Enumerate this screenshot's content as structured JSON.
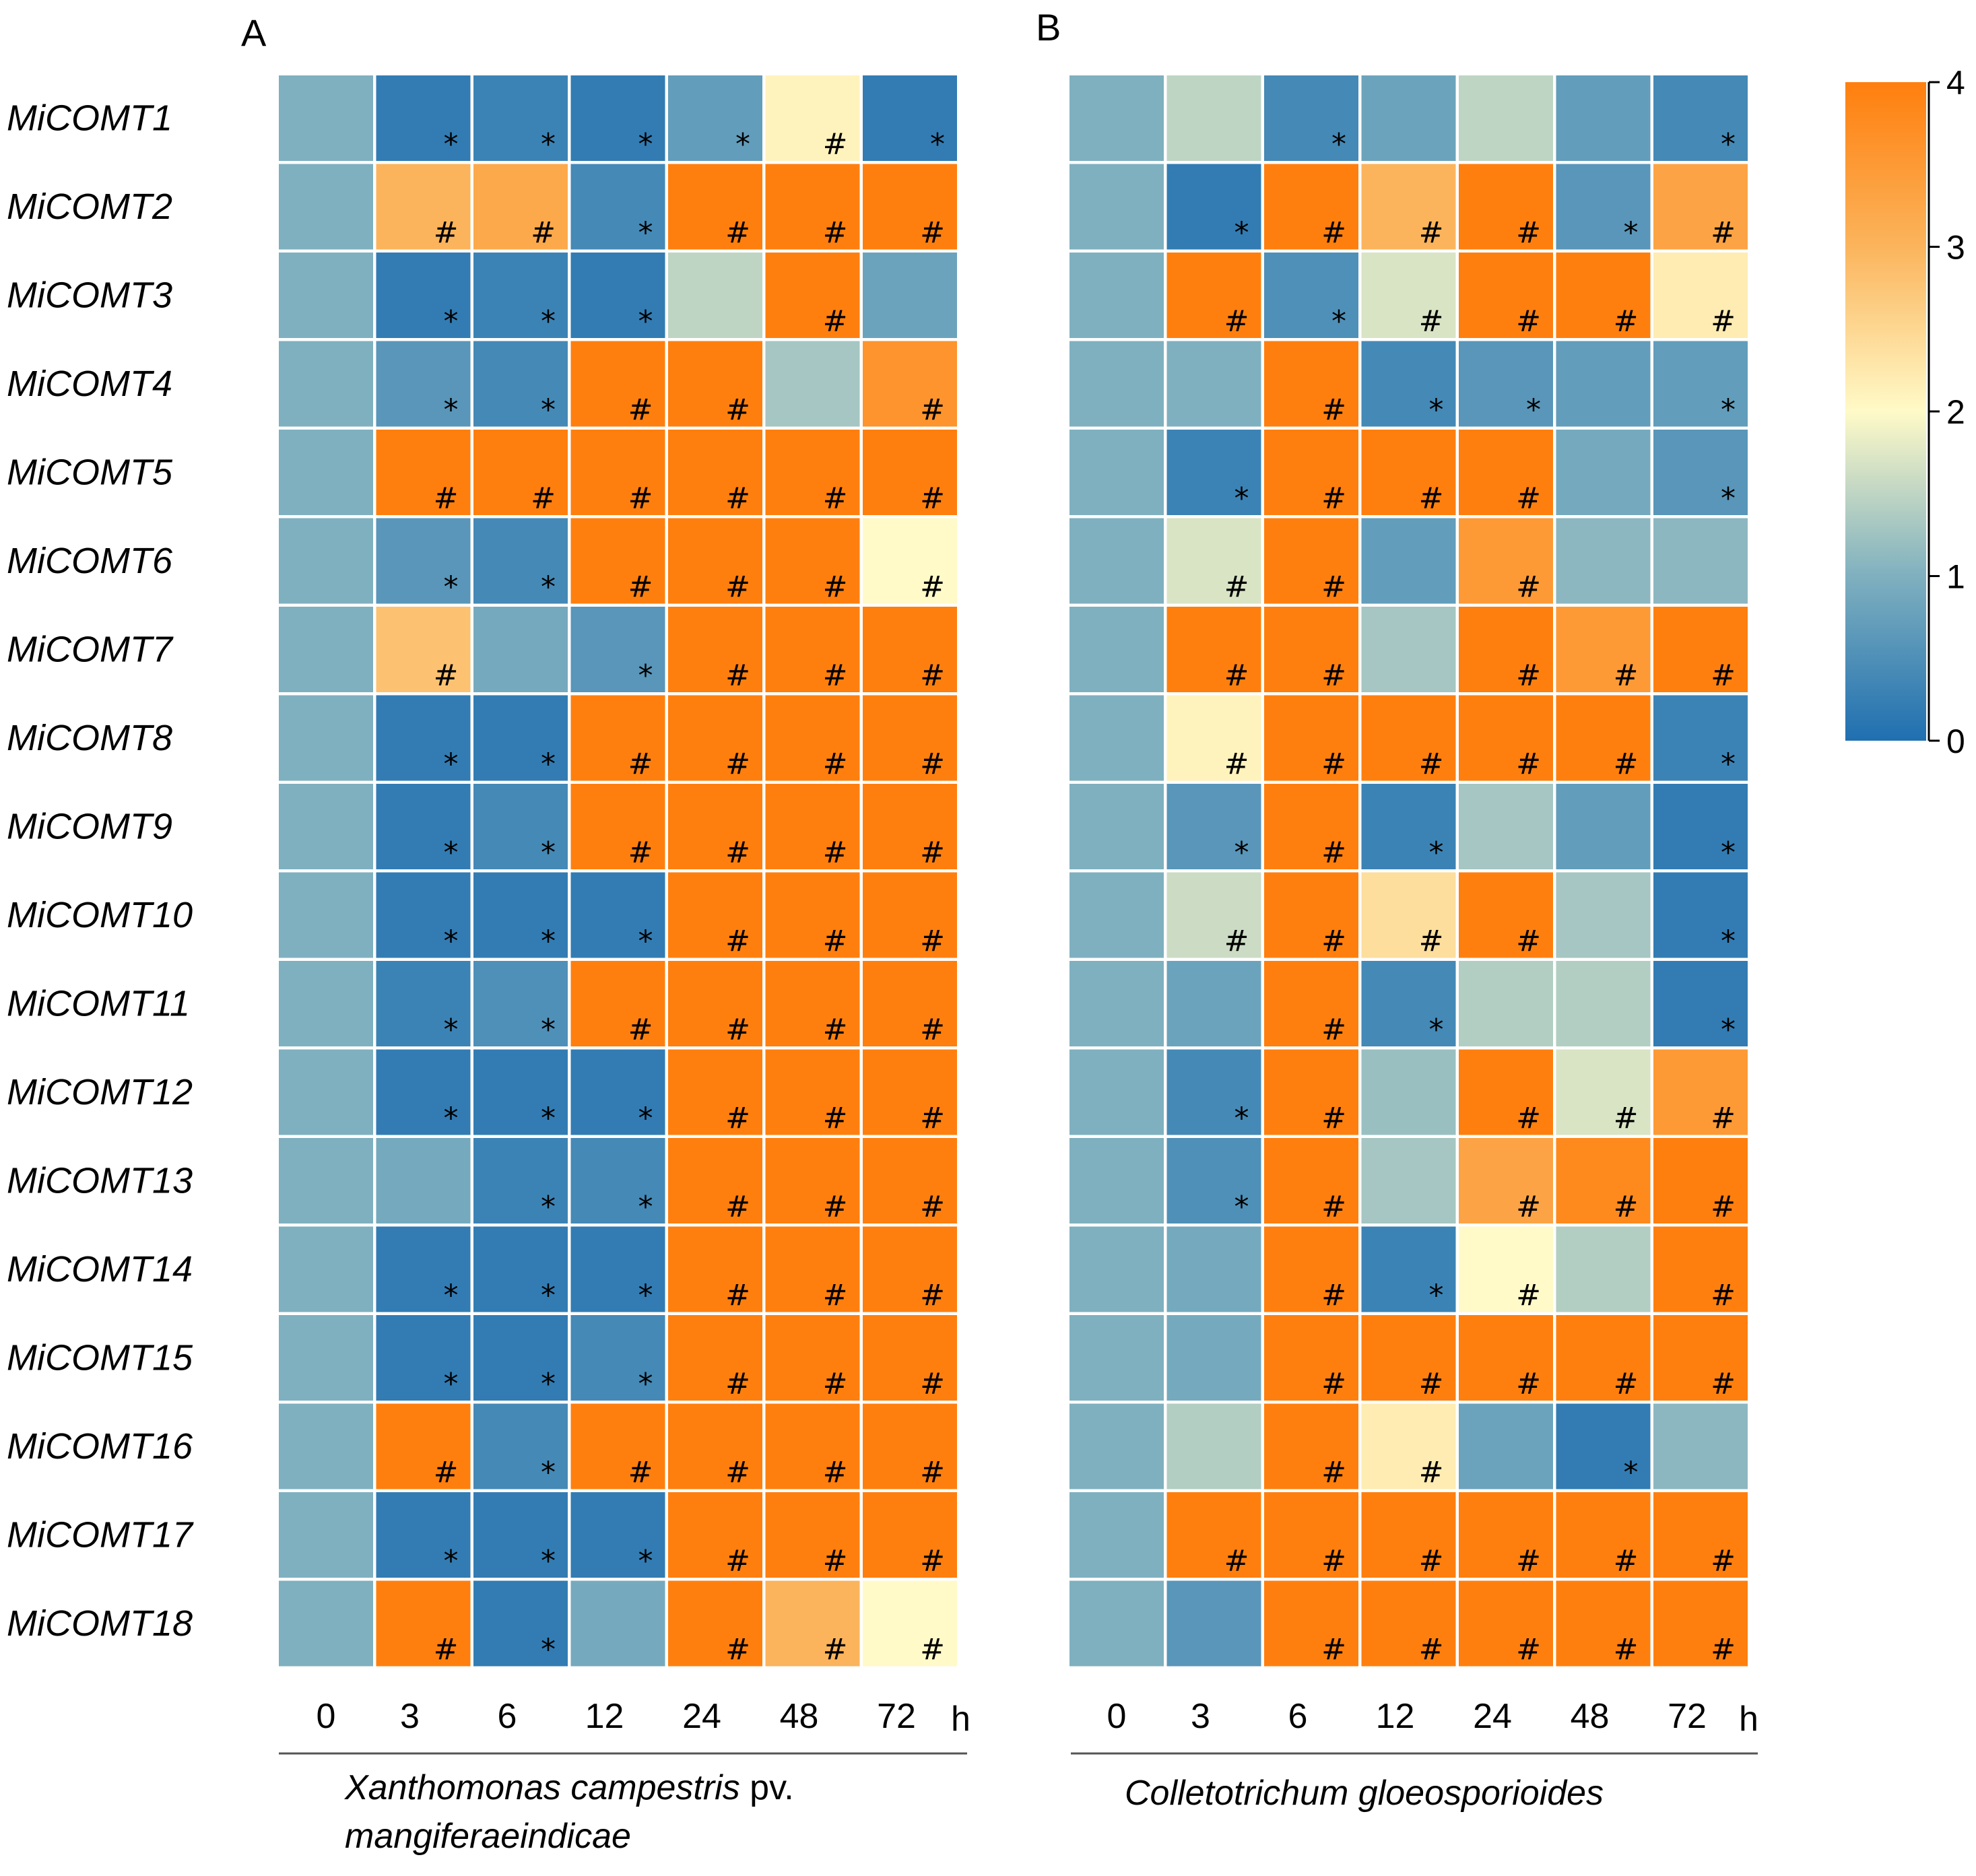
{
  "chart_data": [
    {
      "type": "heatmap",
      "panel": "A",
      "rows": [
        "MiCOMT1",
        "MiCOMT2",
        "MiCOMT3",
        "MiCOMT4",
        "MiCOMT5",
        "MiCOMT6",
        "MiCOMT7",
        "MiCOMT8",
        "MiCOMT9",
        "MiCOMT10",
        "MiCOMT11",
        "MiCOMT12",
        "MiCOMT13",
        "MiCOMT14",
        "MiCOMT15",
        "MiCOMT16",
        "MiCOMT17",
        "MiCOMT18"
      ],
      "columns": [
        "0",
        "3",
        "6",
        "12",
        "24",
        "48",
        "72"
      ],
      "x_unit": "h",
      "condition": [
        {
          "text": "Xanthomonas campestris",
          "italic": true
        },
        {
          "text": " pv.",
          "italic": false
        },
        {
          "text": "mangiferaeindicae",
          "italic": true
        }
      ],
      "values": [
        [
          1.0,
          0.2,
          0.3,
          0.2,
          0.7,
          2.1,
          0.2
        ],
        [
          1.0,
          3.0,
          3.2,
          0.4,
          4.0,
          4.0,
          4.0
        ],
        [
          1.0,
          0.2,
          0.3,
          0.2,
          1.5,
          4.0,
          0.8
        ],
        [
          1.0,
          0.6,
          0.4,
          4.0,
          4.0,
          1.3,
          3.6
        ],
        [
          1.0,
          4.0,
          4.0,
          4.0,
          4.0,
          4.0,
          4.0
        ],
        [
          1.0,
          0.6,
          0.4,
          4.0,
          4.0,
          4.0,
          2.0
        ],
        [
          1.0,
          2.8,
          0.9,
          0.6,
          4.0,
          4.0,
          4.0
        ],
        [
          1.0,
          0.2,
          0.2,
          4.0,
          4.0,
          4.0,
          4.0
        ],
        [
          1.0,
          0.2,
          0.4,
          4.0,
          4.0,
          4.0,
          4.0
        ],
        [
          1.0,
          0.2,
          0.2,
          0.2,
          4.0,
          4.0,
          4.0
        ],
        [
          1.0,
          0.3,
          0.5,
          4.0,
          4.0,
          4.0,
          4.0
        ],
        [
          1.0,
          0.2,
          0.2,
          0.2,
          4.0,
          4.0,
          4.0
        ],
        [
          1.0,
          0.9,
          0.3,
          0.4,
          4.0,
          4.0,
          4.0
        ],
        [
          1.0,
          0.2,
          0.2,
          0.2,
          4.0,
          4.0,
          4.0
        ],
        [
          1.0,
          0.2,
          0.2,
          0.4,
          4.0,
          4.0,
          4.0
        ],
        [
          1.0,
          4.0,
          0.4,
          4.0,
          4.0,
          4.0,
          4.0
        ],
        [
          1.0,
          0.2,
          0.2,
          0.2,
          4.0,
          4.0,
          4.0
        ],
        [
          1.0,
          4.0,
          0.2,
          0.9,
          4.0,
          3.0,
          2.0
        ]
      ],
      "marks": [
        [
          "",
          "*",
          "*",
          "*",
          "*",
          "#",
          "*"
        ],
        [
          "",
          "#",
          "#",
          "*",
          "#",
          "#",
          "#"
        ],
        [
          "",
          "*",
          "*",
          "*",
          "",
          "#",
          ""
        ],
        [
          "",
          "*",
          "*",
          "#",
          "#",
          "",
          "#"
        ],
        [
          "",
          "#",
          "#",
          "#",
          "#",
          "#",
          "#"
        ],
        [
          "",
          "*",
          "*",
          "#",
          "#",
          "#",
          "#"
        ],
        [
          "",
          "#",
          "",
          "*",
          "#",
          "#",
          "#"
        ],
        [
          "",
          "*",
          "*",
          "#",
          "#",
          "#",
          "#"
        ],
        [
          "",
          "*",
          "*",
          "#",
          "#",
          "#",
          "#"
        ],
        [
          "",
          "*",
          "*",
          "*",
          "#",
          "#",
          "#"
        ],
        [
          "",
          "*",
          "*",
          "#",
          "#",
          "#",
          "#"
        ],
        [
          "",
          "*",
          "*",
          "*",
          "#",
          "#",
          "#"
        ],
        [
          "",
          "",
          "*",
          "*",
          "#",
          "#",
          "#"
        ],
        [
          "",
          "*",
          "*",
          "*",
          "#",
          "#",
          "#"
        ],
        [
          "",
          "*",
          "*",
          "*",
          "#",
          "#",
          "#"
        ],
        [
          "",
          "#",
          "*",
          "#",
          "#",
          "#",
          "#"
        ],
        [
          "",
          "*",
          "*",
          "*",
          "#",
          "#",
          "#"
        ],
        [
          "",
          "#",
          "*",
          "",
          "#",
          "#",
          "#"
        ]
      ]
    },
    {
      "type": "heatmap",
      "panel": "B",
      "rows": [
        "MiCOMT1",
        "MiCOMT2",
        "MiCOMT3",
        "MiCOMT4",
        "MiCOMT5",
        "MiCOMT6",
        "MiCOMT7",
        "MiCOMT8",
        "MiCOMT9",
        "MiCOMT10",
        "MiCOMT11",
        "MiCOMT12",
        "MiCOMT13",
        "MiCOMT14",
        "MiCOMT15",
        "MiCOMT16",
        "MiCOMT17",
        "MiCOMT18"
      ],
      "columns": [
        "0",
        "3",
        "6",
        "12",
        "24",
        "48",
        "72"
      ],
      "x_unit": "h",
      "condition": [
        {
          "text": "Colletotrichum gloeosporioides",
          "italic": true
        }
      ],
      "values": [
        [
          1.0,
          1.5,
          0.4,
          0.8,
          1.5,
          0.7,
          0.4
        ],
        [
          1.0,
          0.2,
          4.0,
          3.0,
          4.0,
          0.6,
          3.3
        ],
        [
          1.0,
          4.0,
          0.5,
          1.7,
          4.0,
          4.0,
          2.2
        ],
        [
          1.0,
          1.0,
          4.0,
          0.4,
          0.6,
          0.7,
          0.7
        ],
        [
          1.0,
          0.3,
          4.0,
          4.0,
          4.0,
          0.9,
          0.6
        ],
        [
          1.0,
          1.7,
          4.0,
          0.7,
          3.5,
          1.1,
          1.1
        ],
        [
          1.0,
          4.0,
          4.0,
          1.3,
          4.0,
          3.5,
          4.0
        ],
        [
          1.0,
          2.1,
          4.0,
          4.0,
          4.0,
          4.0,
          0.3
        ],
        [
          1.0,
          0.6,
          4.0,
          0.3,
          1.3,
          0.7,
          0.2
        ],
        [
          1.0,
          1.6,
          4.0,
          2.4,
          4.0,
          1.3,
          0.2
        ],
        [
          1.0,
          0.8,
          4.0,
          0.4,
          1.4,
          1.4,
          0.2
        ],
        [
          1.0,
          0.4,
          4.0,
          1.2,
          4.0,
          1.7,
          3.5
        ],
        [
          1.0,
          0.5,
          4.0,
          1.3,
          3.3,
          3.8,
          4.0
        ],
        [
          1.0,
          0.9,
          4.0,
          0.3,
          2.0,
          1.4,
          4.0
        ],
        [
          1.0,
          0.9,
          4.0,
          4.0,
          4.0,
          4.0,
          4.0
        ],
        [
          1.0,
          1.4,
          4.0,
          2.2,
          0.8,
          0.2,
          1.1
        ],
        [
          1.0,
          4.0,
          4.0,
          4.0,
          4.0,
          4.0,
          4.0
        ],
        [
          1.0,
          0.6,
          4.0,
          4.0,
          4.0,
          4.0,
          4.0
        ]
      ],
      "marks": [
        [
          "",
          "",
          "*",
          "",
          "",
          "",
          "*"
        ],
        [
          "",
          "*",
          "#",
          "#",
          "#",
          "*",
          "#"
        ],
        [
          "",
          "#",
          "*",
          "#",
          "#",
          "#",
          "#"
        ],
        [
          "",
          "",
          "#",
          "*",
          "*",
          "",
          "*"
        ],
        [
          "",
          "*",
          "#",
          "#",
          "#",
          "",
          "*"
        ],
        [
          "",
          "#",
          "#",
          "",
          "#",
          "",
          ""
        ],
        [
          "",
          "#",
          "#",
          "",
          "#",
          "#",
          "#"
        ],
        [
          "",
          "#",
          "#",
          "#",
          "#",
          "#",
          "*"
        ],
        [
          "",
          "*",
          "#",
          "*",
          "",
          "",
          "*"
        ],
        [
          "",
          "#",
          "#",
          "#",
          "#",
          "",
          "*"
        ],
        [
          "",
          "",
          "#",
          "*",
          "",
          "",
          "*"
        ],
        [
          "",
          "*",
          "#",
          "",
          "#",
          "#",
          "#"
        ],
        [
          "",
          "*",
          "#",
          "",
          "#",
          "#",
          "#"
        ],
        [
          "",
          "",
          "#",
          "*",
          "#",
          "",
          "#"
        ],
        [
          "",
          "",
          "#",
          "#",
          "#",
          "#",
          "#"
        ],
        [
          "",
          "",
          "#",
          "#",
          "",
          "*",
          ""
        ],
        [
          "",
          "#",
          "#",
          "#",
          "#",
          "#",
          "#"
        ],
        [
          "",
          "",
          "#",
          "#",
          "#",
          "#",
          "#"
        ]
      ]
    }
  ],
  "color_scale": {
    "min": 0,
    "max": 4,
    "ticks": [
      "0",
      "1",
      "2",
      "3",
      "4"
    ],
    "stops": [
      {
        "value": 0,
        "color": "#1f6fb0"
      },
      {
        "value": 1,
        "color": "#7fb0bf"
      },
      {
        "value": 2,
        "color": "#fffac8"
      },
      {
        "value": 3,
        "color": "#fbb45c"
      },
      {
        "value": 4,
        "color": "#ff7f0e"
      }
    ]
  }
}
